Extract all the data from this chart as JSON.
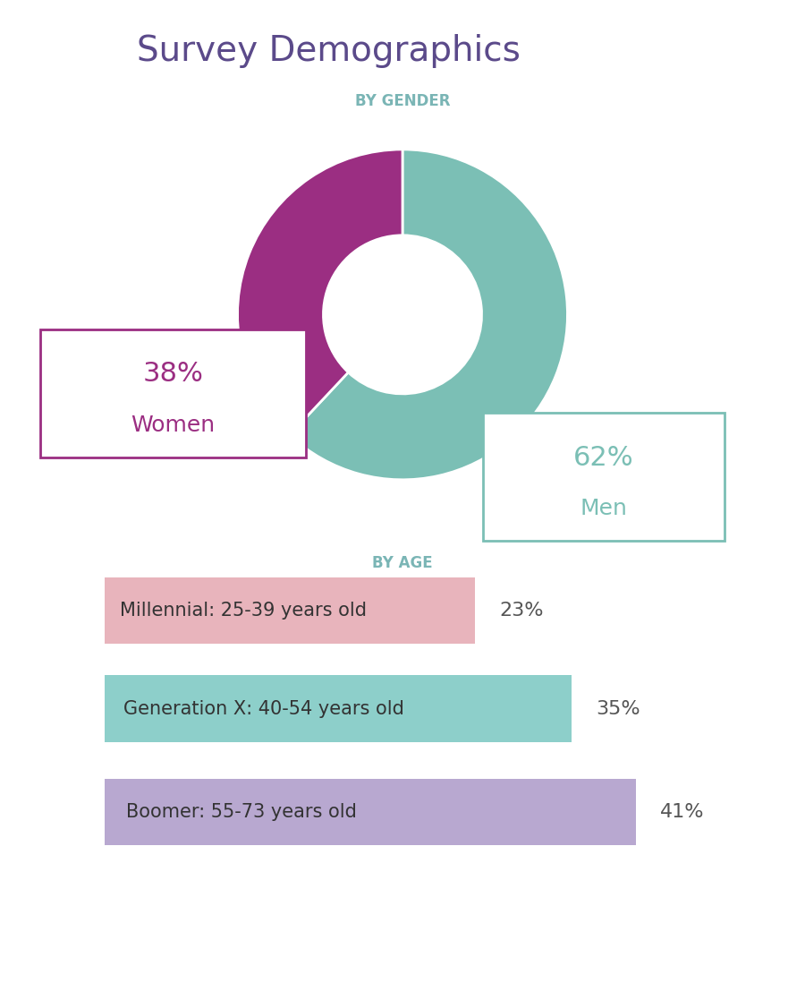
{
  "title": "Survey Demographics",
  "title_color": "#5b4a8a",
  "title_fontsize": 28,
  "gender_label": "BY GENDER",
  "gender_label_color": "#7ab5b5",
  "age_label": "BY AGE",
  "age_label_color": "#7ab5b5",
  "donut_values": [
    62,
    38
  ],
  "donut_colors": [
    "#7bbfb5",
    "#9b2e82"
  ],
  "donut_labels": [
    "Men",
    "Women"
  ],
  "donut_pcts": [
    "62%",
    "38%"
  ],
  "men_color": "#7bbfb5",
  "women_color": "#9b2e82",
  "age_categories": [
    "Millennial: 25-39 years old",
    "Generation X: 40-54 years old",
    "Boomer: 55-73 years old"
  ],
  "age_values": [
    23,
    35,
    41
  ],
  "age_pcts": [
    "23%",
    "35%",
    "41%"
  ],
  "age_bar_colors": [
    "#e8b4bc",
    "#8dcfca",
    "#b8a8d0"
  ],
  "background_color": "white"
}
